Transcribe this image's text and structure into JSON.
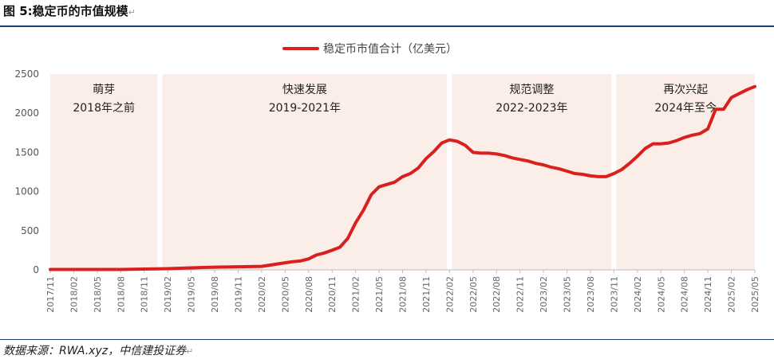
{
  "figure": {
    "title": "图 5:稳定币的市值规模",
    "source_label": "数据来源：",
    "source_text": "RWA.xyz，中信建投证券"
  },
  "chart_data": {
    "type": "line",
    "legend": "稳定币市值合计（亿美元）",
    "legend_position": "top-center",
    "line_color": "#d9201e",
    "band_color": "#fbeee8",
    "grid": false,
    "ylim": [
      0,
      2500
    ],
    "yticks": [
      0,
      500,
      1000,
      1500,
      2000,
      2500
    ],
    "x_tick_labels": [
      "2017/11",
      "2018/02",
      "2018/05",
      "2018/08",
      "2018/11",
      "2019/02",
      "2019/05",
      "2019/08",
      "2019/11",
      "2020/02",
      "2020/05",
      "2020/08",
      "2020/11",
      "2021/02",
      "2021/05",
      "2021/08",
      "2021/11",
      "2022/02",
      "2022/05",
      "2022/08",
      "2022/11",
      "2023/02",
      "2023/05",
      "2023/08",
      "2023/11",
      "2024/02",
      "2024/05",
      "2024/08",
      "2024/11",
      "2025/02",
      "2025/05"
    ],
    "x_range": [
      "2017/11",
      "2025/05"
    ],
    "phases": [
      {
        "name": "萌芽",
        "period": "2018年之前",
        "start": "2017/11",
        "end": "2019/01"
      },
      {
        "name": "快速发展",
        "period": "2019-2021年",
        "start": "2019/01",
        "end": "2022/02"
      },
      {
        "name": "规范调整",
        "period": "2022-2023年",
        "start": "2022/02",
        "end": "2023/11"
      },
      {
        "name": "再次兴起",
        "period": "2024年至今",
        "start": "2023/11",
        "end": "2025/05"
      }
    ],
    "series": [
      {
        "name": "稳定币市值合计（亿美元）",
        "x": [
          "2017/11",
          "2018/02",
          "2018/05",
          "2018/08",
          "2018/11",
          "2019/02",
          "2019/05",
          "2019/08",
          "2019/11",
          "2020/02",
          "2020/03",
          "2020/05",
          "2020/06",
          "2020/07",
          "2020/08",
          "2020/09",
          "2020/10",
          "2020/11",
          "2020/12",
          "2021/01",
          "2021/02",
          "2021/03",
          "2021/04",
          "2021/05",
          "2021/06",
          "2021/07",
          "2021/08",
          "2021/09",
          "2021/10",
          "2021/11",
          "2021/12",
          "2022/01",
          "2022/02",
          "2022/03",
          "2022/04",
          "2022/05",
          "2022/06",
          "2022/07",
          "2022/08",
          "2022/09",
          "2022/10",
          "2022/11",
          "2022/12",
          "2023/01",
          "2023/02",
          "2023/03",
          "2023/04",
          "2023/05",
          "2023/06",
          "2023/07",
          "2023/08",
          "2023/09",
          "2023/10",
          "2023/11",
          "2023/12",
          "2024/01",
          "2024/02",
          "2024/03",
          "2024/04",
          "2024/05",
          "2024/06",
          "2024/07",
          "2024/08",
          "2024/09",
          "2024/10",
          "2024/11",
          "2024/12",
          "2025/01",
          "2025/02",
          "2025/03",
          "2025/04",
          "2025/05"
        ],
        "values": [
          5,
          5,
          5,
          5,
          10,
          15,
          25,
          35,
          40,
          45,
          60,
          90,
          105,
          115,
          140,
          190,
          215,
          250,
          290,
          400,
          600,
          760,
          960,
          1060,
          1090,
          1120,
          1190,
          1230,
          1300,
          1420,
          1510,
          1620,
          1660,
          1640,
          1590,
          1500,
          1490,
          1490,
          1480,
          1460,
          1430,
          1410,
          1390,
          1360,
          1340,
          1310,
          1290,
          1260,
          1230,
          1220,
          1200,
          1190,
          1190,
          1230,
          1280,
          1360,
          1450,
          1550,
          1610,
          1610,
          1620,
          1650,
          1690,
          1720,
          1740,
          1800,
          2050,
          2050,
          2200,
          2250,
          2300,
          2340
        ]
      }
    ]
  }
}
